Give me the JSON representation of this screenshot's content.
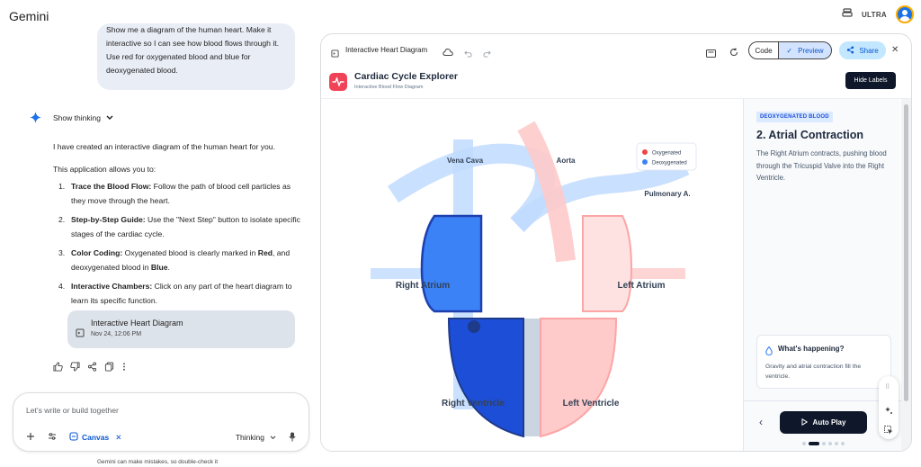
{
  "app": {
    "title": "Gemini",
    "plan_badge": "ULTRA"
  },
  "chat": {
    "user_message": "Show me a diagram of the human heart. Make it interactive so I can see how blood flows through it. Use red for oxygenated blood and blue for deoxygenated blood.",
    "show_thinking": "Show thinking",
    "response_intro": "I have created an interactive diagram of the human heart for you.",
    "response_lead": "This application allows you to:",
    "steps": [
      {
        "num": "1.",
        "bold": "Trace the Blood Flow:",
        "text": " Follow the path of blood cell particles as they move through the heart."
      },
      {
        "num": "2.",
        "bold": "Step-by-Step Guide:",
        "text": " Use the \"Next Step\" button to isolate specific stages of the cardiac cycle."
      },
      {
        "num": "3.",
        "bold": "Color Coding:",
        "text_parts": [
          " Oxygenated blood is clearly marked in ",
          "Red",
          ", and deoxygenated blood in ",
          "Blue",
          "."
        ]
      },
      {
        "num": "4.",
        "bold": "Interactive Chambers:",
        "text": " Click on any part of the heart diagram to learn its specific function."
      }
    ],
    "canvas_card": {
      "title": "Interactive Heart Diagram",
      "date": "Nov 24, 12:06 PM"
    }
  },
  "composer": {
    "placeholder": "Let's write or build together",
    "canvas_chip": "Canvas",
    "mode": "Thinking",
    "disclaimer": "Gemini can make mistakes, so double-check it"
  },
  "panel": {
    "title": "Interactive Heart Diagram",
    "code_label": "Code",
    "preview_label": "Preview",
    "share_label": "Share"
  },
  "heart_app": {
    "name": "Cardiac Cycle Explorer",
    "subtitle": "Interactive Blood Flow Diagram",
    "hide_labels": "Hide Labels",
    "legend": {
      "oxygenated": "Oxygenated",
      "deoxygenated": "Deoxygenated"
    },
    "labels": {
      "vena_cava": "Vena Cava",
      "aorta": "Aorta",
      "pulmonary": "Pulmonary A.",
      "right_atrium": "Right Atrium",
      "left_atrium": "Left Atrium",
      "right_ventricle": "Right Ventricle",
      "left_ventricle": "Left Ventricle"
    },
    "step_tag": "DEOXYGENATED BLOOD",
    "step_title": "2. Atrial Contraction",
    "step_desc": "The Right Atrium contracts, pushing blood through the Tricuspid Valve into the Right Ventricle.",
    "whats_title": "What's happening?",
    "whats_body": "Gravity and atrial contraction fill the ventricle.",
    "autoplay": "Auto Play",
    "current_step": 2,
    "total_steps": 6
  },
  "colors": {
    "oxygenated": "#ef4444",
    "deoxygenated": "#3b82f6",
    "accent": "#0b57d0",
    "dark": "#0f172a"
  }
}
